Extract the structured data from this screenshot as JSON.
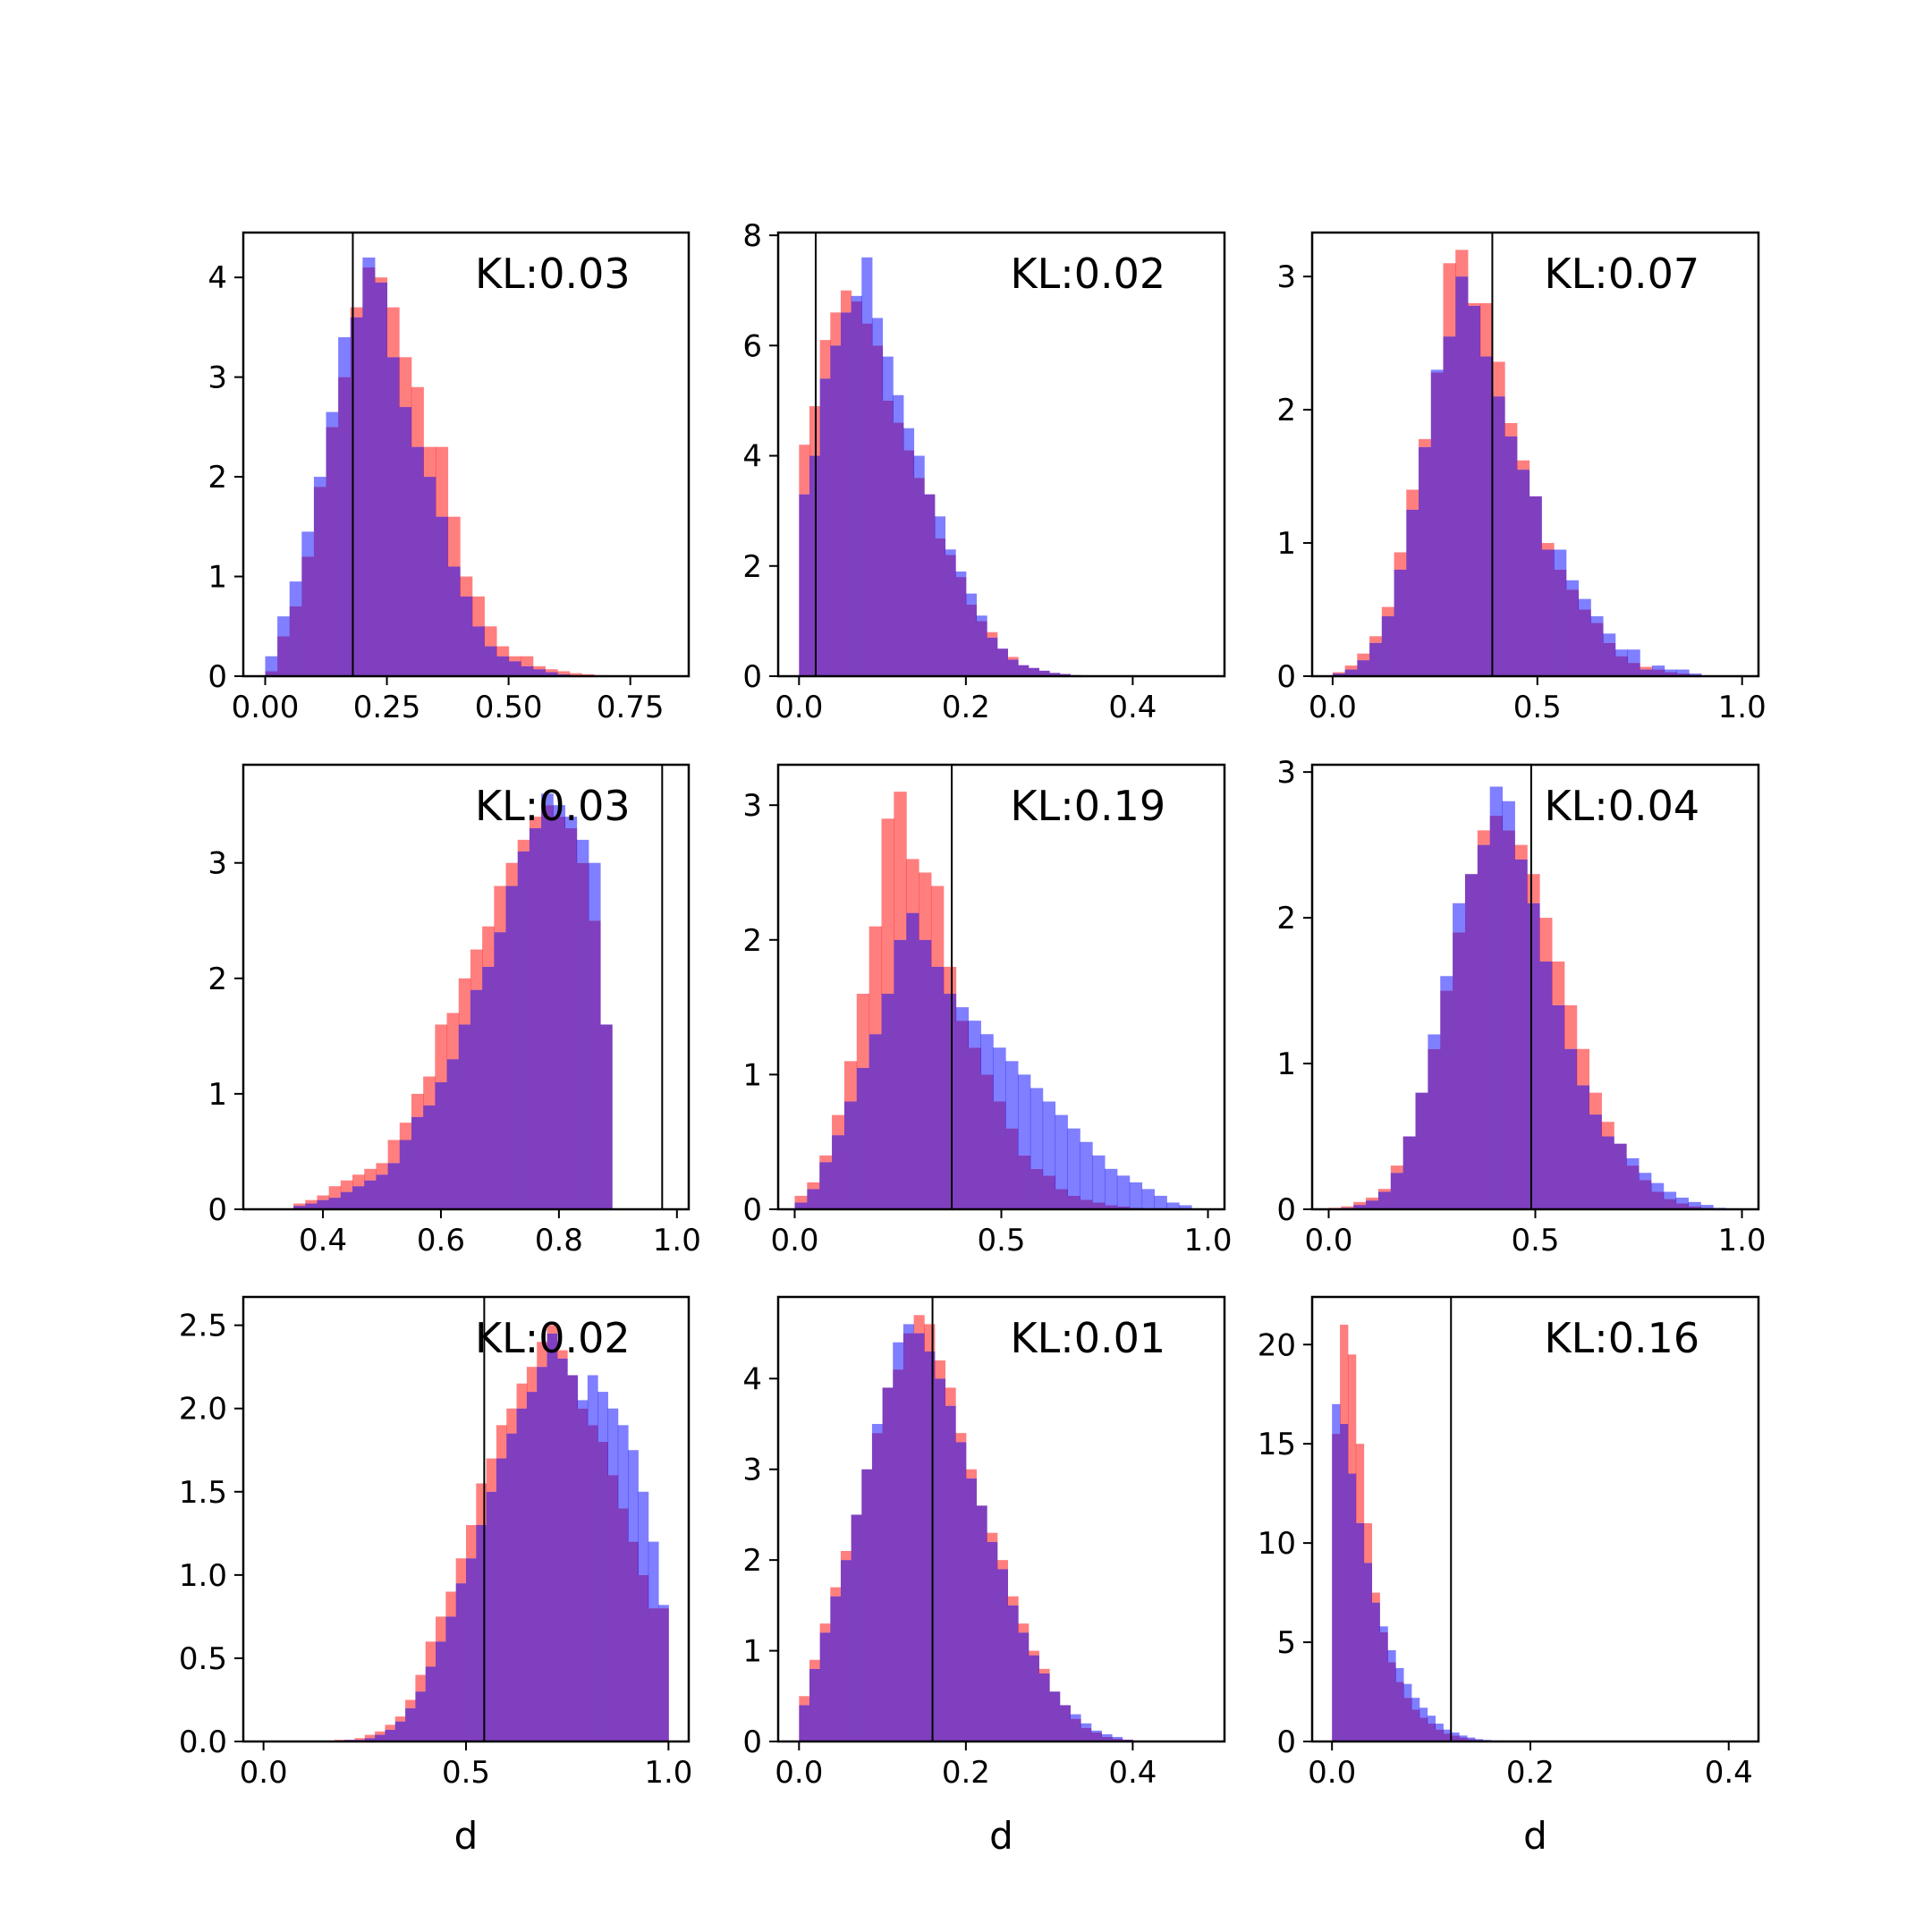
{
  "colors": {
    "red": "#ff0000",
    "blue": "#0000ff",
    "overlap": "#7f3fbf",
    "axis": "#000000"
  },
  "xlabel": "d",
  "chart_data": [
    {
      "type": "bar",
      "annotation": "KL:0.03",
      "vline": 0.18,
      "xlim": [
        -0.045,
        0.87
      ],
      "ylim": [
        0,
        4.45
      ],
      "xticks": [
        0.0,
        0.25,
        0.5,
        0.75
      ],
      "yticks": [
        0,
        1,
        2,
        3,
        4
      ],
      "tick_decimals": 2,
      "bin_start": 0.0,
      "bin_width": 0.025,
      "series": [
        {
          "name": "",
          "color": "red",
          "values": [
            0.05,
            0.4,
            0.7,
            1.2,
            1.9,
            2.5,
            3.0,
            3.7,
            4.1,
            4.0,
            3.7,
            3.2,
            2.9,
            2.3,
            2.3,
            1.6,
            1.0,
            0.8,
            0.5,
            0.3,
            0.2,
            0.2,
            0.1,
            0.07,
            0.05,
            0.03,
            0.02,
            0.01
          ]
        },
        {
          "name": "",
          "color": "blue",
          "values": [
            0.2,
            0.6,
            0.95,
            1.45,
            2.0,
            2.65,
            3.4,
            3.6,
            4.2,
            3.95,
            3.2,
            2.7,
            2.3,
            2.0,
            1.6,
            1.1,
            0.8,
            0.5,
            0.3,
            0.2,
            0.15,
            0.1,
            0.07,
            0.04,
            0.02,
            0.01,
            0.0,
            0.0
          ]
        }
      ]
    },
    {
      "type": "bar",
      "annotation": "KL:0.02",
      "vline": 0.02,
      "xlim": [
        -0.025,
        0.51
      ],
      "ylim": [
        0,
        8.05
      ],
      "xticks": [
        0.0,
        0.2,
        0.4
      ],
      "yticks": [
        0,
        2,
        4,
        6,
        8
      ],
      "tick_decimals": 1,
      "bin_start": 0.0,
      "bin_width": 0.0125,
      "series": [
        {
          "name": "",
          "color": "red",
          "values": [
            4.2,
            4.9,
            6.1,
            6.6,
            7.0,
            6.8,
            6.4,
            6.0,
            5.0,
            4.6,
            4.1,
            3.6,
            3.3,
            2.5,
            2.2,
            1.8,
            1.3,
            1.0,
            0.8,
            0.5,
            0.35,
            0.2,
            0.15,
            0.1,
            0.06,
            0.04,
            0.02,
            0.01
          ]
        },
        {
          "name": "",
          "color": "blue",
          "values": [
            3.3,
            4.0,
            5.4,
            6.0,
            6.6,
            6.9,
            7.6,
            6.5,
            5.8,
            5.1,
            4.5,
            4.0,
            3.3,
            2.9,
            2.3,
            1.9,
            1.5,
            1.1,
            0.7,
            0.5,
            0.3,
            0.2,
            0.15,
            0.1,
            0.06,
            0.04,
            0.02,
            0.01
          ]
        }
      ]
    },
    {
      "type": "bar",
      "annotation": "KL:0.07",
      "vline": 0.39,
      "xlim": [
        -0.05,
        1.04
      ],
      "ylim": [
        0,
        3.33
      ],
      "xticks": [
        0.0,
        0.5,
        1.0
      ],
      "yticks": [
        0,
        1,
        2,
        3
      ],
      "tick_decimals": 1,
      "bin_start": 0.0,
      "bin_width": 0.03,
      "series": [
        {
          "name": "",
          "color": "red",
          "values": [
            0.03,
            0.08,
            0.17,
            0.3,
            0.52,
            0.93,
            1.4,
            1.78,
            2.28,
            3.1,
            3.2,
            2.8,
            2.8,
            2.36,
            1.9,
            1.62,
            1.35,
            1.0,
            0.8,
            0.65,
            0.5,
            0.4,
            0.25,
            0.15,
            0.1,
            0.07,
            0.05,
            0.03,
            0.02,
            0.01
          ]
        },
        {
          "name": "",
          "color": "blue",
          "values": [
            0.02,
            0.05,
            0.12,
            0.25,
            0.45,
            0.8,
            1.25,
            1.72,
            2.3,
            2.55,
            3.0,
            2.78,
            2.4,
            2.1,
            1.8,
            1.55,
            1.35,
            0.95,
            0.95,
            0.72,
            0.58,
            0.45,
            0.32,
            0.2,
            0.2,
            0.05,
            0.08,
            0.05,
            0.05,
            0.02
          ]
        }
      ]
    },
    {
      "type": "bar",
      "annotation": "KL:0.03",
      "vline": 0.975,
      "xlim": [
        0.265,
        1.02
      ],
      "ylim": [
        0,
        3.85
      ],
      "xticks": [
        0.4,
        0.6,
        0.8,
        1.0
      ],
      "yticks": [
        0,
        1,
        2,
        3
      ],
      "tick_decimals": 1,
      "bin_start": 0.35,
      "bin_width": 0.02,
      "series": [
        {
          "name": "",
          "color": "red",
          "values": [
            0.05,
            0.08,
            0.12,
            0.2,
            0.25,
            0.3,
            0.35,
            0.4,
            0.6,
            0.75,
            1.0,
            1.15,
            1.6,
            1.7,
            2.0,
            2.25,
            2.45,
            2.8,
            3.0,
            3.2,
            3.4,
            3.5,
            3.4,
            3.3,
            3.0,
            2.5,
            1.6
          ]
        },
        {
          "name": "",
          "color": "blue",
          "values": [
            0.03,
            0.05,
            0.08,
            0.1,
            0.15,
            0.2,
            0.25,
            0.3,
            0.4,
            0.6,
            0.8,
            0.9,
            1.1,
            1.3,
            1.6,
            1.9,
            2.1,
            2.4,
            2.8,
            3.1,
            3.3,
            3.6,
            3.5,
            3.4,
            3.2,
            3.0,
            1.6
          ]
        }
      ]
    },
    {
      "type": "bar",
      "annotation": "KL:0.19",
      "vline": 0.38,
      "xlim": [
        -0.04,
        1.04
      ],
      "ylim": [
        0,
        3.3
      ],
      "xticks": [
        0.0,
        0.5,
        1.0
      ],
      "yticks": [
        0,
        1,
        2,
        3
      ],
      "tick_decimals": 1,
      "bin_start": 0.0,
      "bin_width": 0.03,
      "series": [
        {
          "name": "",
          "color": "red",
          "values": [
            0.1,
            0.2,
            0.4,
            0.7,
            1.1,
            1.6,
            2.1,
            2.9,
            3.1,
            2.6,
            2.5,
            2.4,
            1.8,
            1.4,
            1.2,
            1.0,
            0.8,
            0.6,
            0.4,
            0.3,
            0.25,
            0.15,
            0.1,
            0.07,
            0.05,
            0.03,
            0.02,
            0.01,
            0.0,
            0.0,
            0.0,
            0.0
          ]
        },
        {
          "name": "",
          "color": "blue",
          "values": [
            0.05,
            0.15,
            0.35,
            0.55,
            0.8,
            1.05,
            1.3,
            1.6,
            2.0,
            2.2,
            2.0,
            1.8,
            1.6,
            1.5,
            1.4,
            1.3,
            1.2,
            1.1,
            1.0,
            0.9,
            0.8,
            0.7,
            0.6,
            0.5,
            0.4,
            0.3,
            0.25,
            0.2,
            0.15,
            0.1,
            0.05,
            0.03
          ]
        }
      ]
    },
    {
      "type": "bar",
      "annotation": "KL:0.04",
      "vline": 0.49,
      "xlim": [
        -0.04,
        1.04
      ],
      "ylim": [
        0,
        3.05
      ],
      "xticks": [
        0.0,
        0.5,
        1.0
      ],
      "yticks": [
        0,
        1,
        2,
        3
      ],
      "tick_decimals": 1,
      "bin_start": 0.0,
      "bin_width": 0.03,
      "series": [
        {
          "name": "",
          "color": "red",
          "values": [
            0.01,
            0.02,
            0.05,
            0.08,
            0.14,
            0.3,
            0.5,
            0.8,
            1.1,
            1.5,
            1.9,
            2.3,
            2.6,
            2.7,
            2.6,
            2.5,
            2.3,
            2.0,
            1.7,
            1.4,
            1.1,
            0.8,
            0.6,
            0.45,
            0.3,
            0.2,
            0.12,
            0.07,
            0.04,
            0.02,
            0.01,
            0.0
          ]
        },
        {
          "name": "",
          "color": "blue",
          "values": [
            0.0,
            0.01,
            0.03,
            0.06,
            0.12,
            0.25,
            0.5,
            0.8,
            1.2,
            1.6,
            2.1,
            2.3,
            2.5,
            2.9,
            2.8,
            2.4,
            2.1,
            1.7,
            1.4,
            1.1,
            0.85,
            0.65,
            0.5,
            0.45,
            0.35,
            0.25,
            0.18,
            0.12,
            0.08,
            0.05,
            0.03,
            0.01
          ]
        }
      ]
    },
    {
      "type": "bar",
      "annotation": "KL:0.02",
      "vline": 0.545,
      "xlim": [
        -0.05,
        1.05
      ],
      "ylim": [
        0,
        2.67
      ],
      "xticks": [
        0.0,
        0.5,
        1.0
      ],
      "yticks": [
        0.0,
        0.5,
        1.0,
        1.5,
        2.0,
        2.5
      ],
      "tick_decimals": 1,
      "bin_start": 0.0,
      "bin_width": 0.025,
      "series": [
        {
          "name": "",
          "color": "red",
          "values": [
            0,
            0,
            0,
            0,
            0,
            0,
            0,
            0.01,
            0.01,
            0.02,
            0.04,
            0.06,
            0.1,
            0.15,
            0.25,
            0.4,
            0.6,
            0.75,
            0.9,
            1.1,
            1.3,
            1.55,
            1.7,
            1.9,
            2.0,
            2.15,
            2.25,
            2.4,
            2.5,
            2.35,
            2.2,
            2.0,
            1.9,
            1.8,
            1.6,
            1.4,
            1.2,
            1.0,
            0.8,
            0.8
          ]
        },
        {
          "name": "",
          "color": "blue",
          "values": [
            0,
            0,
            0,
            0,
            0,
            0,
            0,
            0.0,
            0.01,
            0.01,
            0.02,
            0.04,
            0.07,
            0.12,
            0.2,
            0.3,
            0.45,
            0.6,
            0.75,
            0.95,
            1.1,
            1.3,
            1.5,
            1.7,
            1.85,
            2.0,
            2.1,
            2.25,
            2.45,
            2.3,
            2.2,
            2.05,
            2.2,
            2.1,
            2.0,
            1.9,
            1.75,
            1.5,
            1.2,
            0.82
          ]
        }
      ]
    },
    {
      "type": "bar",
      "annotation": "KL:0.01",
      "vline": 0.16,
      "xlim": [
        -0.025,
        0.51
      ],
      "ylim": [
        0,
        4.9
      ],
      "xticks": [
        0.0,
        0.2,
        0.4
      ],
      "yticks": [
        0,
        1,
        2,
        3,
        4
      ],
      "tick_decimals": 1,
      "bin_start": 0.0,
      "bin_width": 0.0125,
      "series": [
        {
          "name": "",
          "color": "red",
          "values": [
            0.5,
            0.9,
            1.3,
            1.7,
            2.1,
            2.5,
            3.0,
            3.4,
            3.9,
            4.1,
            4.5,
            4.7,
            4.6,
            4.2,
            3.9,
            3.4,
            3.0,
            2.6,
            2.3,
            2.0,
            1.6,
            1.3,
            1.0,
            0.8,
            0.55,
            0.4,
            0.25,
            0.15,
            0.1,
            0.05,
            0.03,
            0.02
          ]
        },
        {
          "name": "",
          "color": "blue",
          "values": [
            0.4,
            0.8,
            1.2,
            1.6,
            2.0,
            2.5,
            3.0,
            3.5,
            3.9,
            4.4,
            4.6,
            4.5,
            4.3,
            4.0,
            3.7,
            3.3,
            2.9,
            2.6,
            2.2,
            1.9,
            1.5,
            1.2,
            0.95,
            0.75,
            0.55,
            0.4,
            0.3,
            0.2,
            0.12,
            0.08,
            0.05,
            0.02
          ]
        }
      ]
    },
    {
      "type": "bar",
      "annotation": "KL:0.16",
      "vline": 0.12,
      "xlim": [
        -0.02,
        0.43
      ],
      "ylim": [
        0,
        22.4
      ],
      "xticks": [
        0.0,
        0.2,
        0.4
      ],
      "yticks": [
        0,
        5,
        10,
        15,
        20
      ],
      "tick_decimals": 1,
      "bin_start": 0.0,
      "bin_width": 0.008,
      "series": [
        {
          "name": "",
          "color": "red",
          "values": [
            15.5,
            21.0,
            19.5,
            15.0,
            11.0,
            7.5,
            5.5,
            4.0,
            3.0,
            2.2,
            1.6,
            1.2,
            0.9,
            0.6,
            0.4,
            0.3,
            0.2,
            0.12,
            0.08,
            0.05,
            0.03,
            0.02
          ]
        },
        {
          "name": "",
          "color": "blue",
          "values": [
            17.0,
            16.0,
            13.5,
            11.0,
            9.0,
            7.0,
            5.8,
            4.6,
            3.7,
            2.9,
            2.2,
            1.7,
            1.3,
            0.9,
            0.6,
            0.45,
            0.3,
            0.2,
            0.12,
            0.08,
            0.05,
            0.03
          ]
        }
      ]
    }
  ]
}
